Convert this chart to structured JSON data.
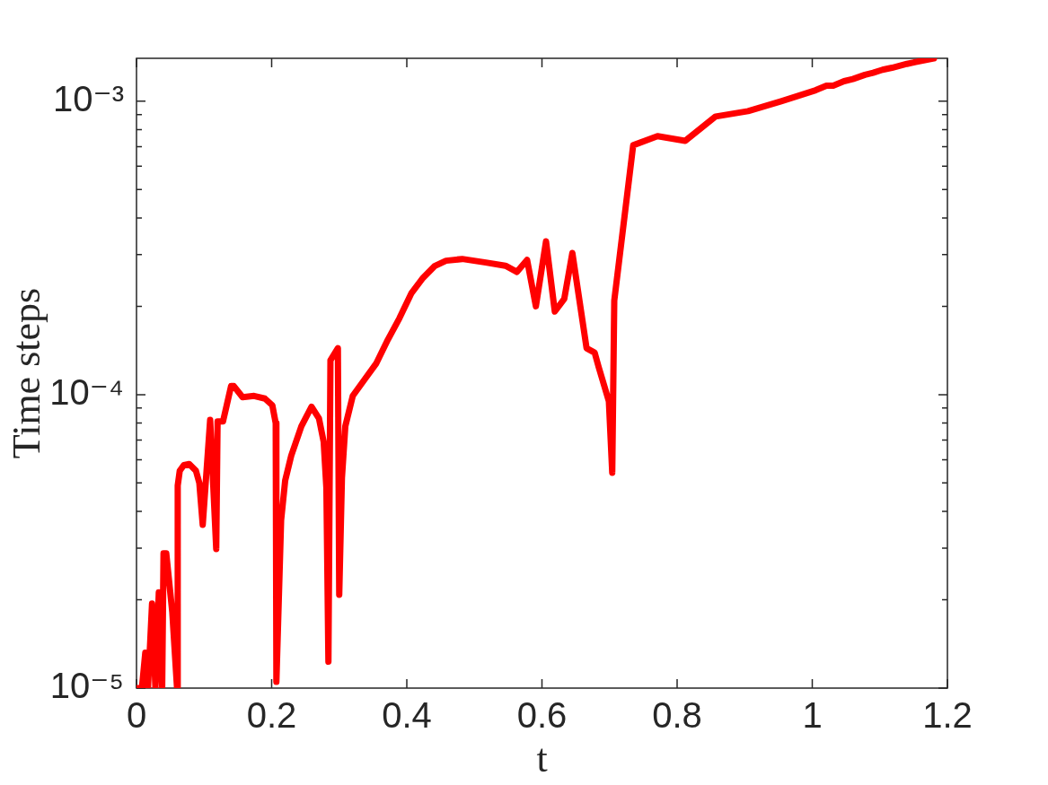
{
  "chart_data": {
    "type": "line",
    "xlabel": "t",
    "ylabel": "Time steps",
    "x": [
      0,
      0.008,
      0.013,
      0.017,
      0.023,
      0.028,
      0.033,
      0.038,
      0.04,
      0.044,
      0.053,
      0.06,
      0.061,
      0.064,
      0.07,
      0.078,
      0.088,
      0.093,
      0.098,
      0.109,
      0.118,
      0.12,
      0.128,
      0.14,
      0.144,
      0.157,
      0.174,
      0.19,
      0.201,
      0.206,
      0.207,
      0.214,
      0.22,
      0.229,
      0.244,
      0.259,
      0.27,
      0.277,
      0.281,
      0.284,
      0.287,
      0.298,
      0.3,
      0.304,
      0.309,
      0.32,
      0.338,
      0.355,
      0.372,
      0.389,
      0.407,
      0.424,
      0.441,
      0.458,
      0.482,
      0.517,
      0.546,
      0.563,
      0.578,
      0.591,
      0.606,
      0.619,
      0.633,
      0.645,
      0.666,
      0.678,
      0.684,
      0.699,
      0.704,
      0.707,
      0.735,
      0.771,
      0.812,
      0.857,
      0.905,
      0.954,
      1.005,
      1.021,
      1.031,
      1.047,
      1.06,
      1.078,
      1.09,
      1.104,
      1.118,
      1.14,
      1.153,
      1.18
    ],
    "values": [
      1e-05,
      1e-05,
      1.32e-05,
      1e-05,
      1.94e-05,
      1e-05,
      2.12e-05,
      1e-05,
      2.88e-05,
      2.88e-05,
      1.81e-05,
      1e-05,
      4.9e-05,
      5.5e-05,
      5.75e-05,
      5.8e-05,
      5.5e-05,
      5e-05,
      3.6e-05,
      8.2e-05,
      2.98e-05,
      8.1e-05,
      8.1e-05,
      0.000107,
      0.000107,
      9.8e-05,
      9.9e-05,
      9.7e-05,
      9.2e-05,
      8e-05,
      1.05e-05,
      3.73e-05,
      5.1e-05,
      6.2e-05,
      7.8e-05,
      9.1e-05,
      8.3e-05,
      6.9e-05,
      4.8e-05,
      1.23e-05,
      0.000131,
      0.000144,
      2.08e-05,
      5.2e-05,
      7.8e-05,
      9.9e-05,
      0.000113,
      0.000128,
      0.000154,
      0.000182,
      0.000222,
      0.00025,
      0.000274,
      0.000286,
      0.00029,
      0.000282,
      0.000275,
      0.000262,
      0.000288,
      0.0002,
      0.000333,
      0.000192,
      0.000212,
      0.000304,
      0.000144,
      0.000139,
      0.000124,
      9.5e-05,
      5.42e-05,
      0.000209,
      0.000708,
      0.00076,
      0.000733,
      0.000887,
      0.000925,
      0.001,
      0.00109,
      0.00113,
      0.00113,
      0.00117,
      0.00119,
      0.00123,
      0.00125,
      0.00128,
      0.0013,
      0.00134,
      0.00136,
      0.0014
    ],
    "color": "#ff0000",
    "log": "y",
    "xlim": [
      0,
      1.2
    ],
    "xticks": [
      0,
      0.2,
      0.4,
      0.6,
      0.8,
      1,
      1.2
    ],
    "ylim": [
      1e-05,
      0.0014
    ],
    "yticks": [
      {
        "value": 1e-05,
        "label": "10⁻⁵"
      },
      {
        "value": 2e-05,
        "label": null
      },
      {
        "value": 3e-05,
        "label": null
      },
      {
        "value": 4e-05,
        "label": null
      },
      {
        "value": 5e-05,
        "label": null
      },
      {
        "value": 6e-05,
        "label": null
      },
      {
        "value": 7e-05,
        "label": null
      },
      {
        "value": 8e-05,
        "label": null
      },
      {
        "value": 9e-05,
        "label": null
      },
      {
        "value": 0.0001,
        "label": "10⁻⁴"
      },
      {
        "value": 0.0002,
        "label": null
      },
      {
        "value": 0.0003,
        "label": null
      },
      {
        "value": 0.0004,
        "label": null
      },
      {
        "value": 0.0005,
        "label": null
      },
      {
        "value": 0.0006,
        "label": null
      },
      {
        "value": 0.0007,
        "label": null
      },
      {
        "value": 0.0008,
        "label": null
      },
      {
        "value": 0.0009,
        "label": null
      },
      {
        "value": 0.001,
        "label": "10⁻³"
      }
    ]
  }
}
